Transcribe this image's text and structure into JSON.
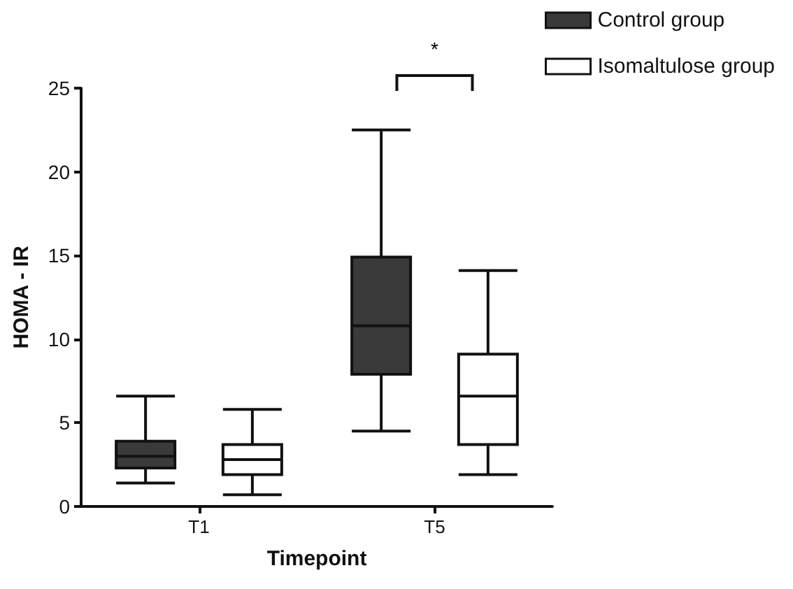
{
  "chart_data": {
    "type": "box",
    "xlabel": "Timepoint",
    "ylabel": "HOMA - IR",
    "categories": [
      "T1",
      "T5"
    ],
    "series": [
      {
        "name": "Control group",
        "color": "#3a3a3a",
        "boxes": [
          {
            "low": 1.4,
            "q1": 2.3,
            "median": 3.0,
            "q3": 3.9,
            "high": 6.6
          },
          {
            "low": 4.5,
            "q1": 7.9,
            "median": 10.8,
            "q3": 14.9,
            "high": 22.5
          }
        ]
      },
      {
        "name": "Isomaltulose group",
        "color": "#ffffff",
        "boxes": [
          {
            "low": 0.7,
            "q1": 1.9,
            "median": 2.8,
            "q3": 3.7,
            "high": 5.8
          },
          {
            "low": 1.9,
            "q1": 3.7,
            "median": 6.6,
            "q3": 9.1,
            "high": 14.1
          }
        ]
      }
    ],
    "ylim": [
      0,
      25
    ],
    "yticks": [
      0,
      5,
      10,
      15,
      20,
      25
    ],
    "legend": "top right",
    "annotations": [
      "*"
    ]
  }
}
